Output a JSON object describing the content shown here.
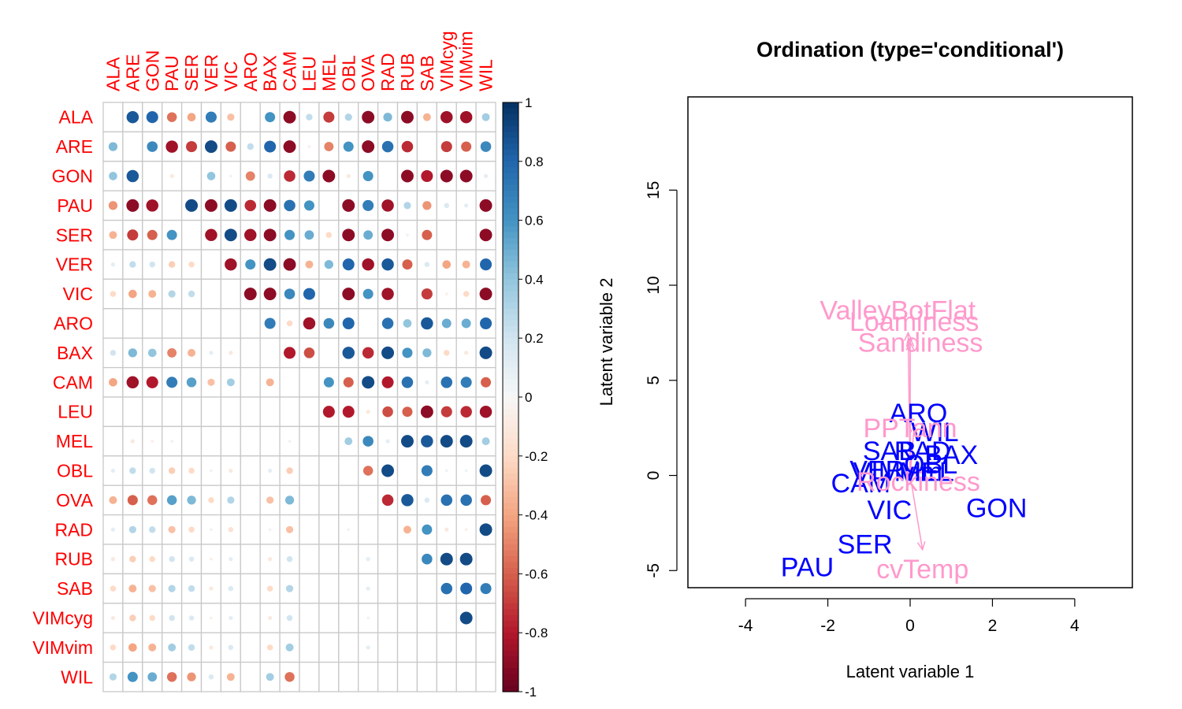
{
  "chart_data": [
    {
      "type": "heatmap",
      "species": [
        "ALA",
        "ARE",
        "GON",
        "PAU",
        "SER",
        "VER",
        "VIC",
        "ARO",
        "BAX",
        "CAM",
        "LEU",
        "MEL",
        "OBL",
        "OVA",
        "RAD",
        "RUB",
        "SAB",
        "VIMcyg",
        "VIMvim",
        "WIL"
      ],
      "correlation": [
        [
          0,
          0.85,
          0.8,
          -0.55,
          -0.4,
          0.7,
          -0.3,
          0,
          0.6,
          -0.9,
          0.25,
          -0.7,
          0.3,
          -0.9,
          0.45,
          -0.9,
          -0.35,
          -0.85,
          -0.85,
          0.35
        ],
        [
          0.45,
          0,
          0.65,
          -0.85,
          -0.7,
          0.9,
          -0.6,
          0.25,
          0.8,
          -0.9,
          -0.05,
          -0.5,
          0.6,
          -0.9,
          0.75,
          -0.75,
          0,
          -0.7,
          -0.6,
          0.65
        ],
        [
          0.4,
          0.85,
          0,
          -0.1,
          0,
          0.4,
          0.05,
          -0.5,
          0.15,
          -0.75,
          0.7,
          -0.9,
          -0.1,
          0.6,
          0,
          -0.9,
          -0.8,
          -0.9,
          -0.9,
          0.1
        ],
        [
          -0.45,
          -0.9,
          -0.85,
          0,
          0.9,
          -0.9,
          0.9,
          -0.75,
          -0.9,
          0.75,
          0.6,
          0,
          -0.9,
          0.7,
          -0.85,
          0.3,
          -0.45,
          0.15,
          0.1,
          -0.9
        ],
        [
          -0.35,
          -0.7,
          -0.6,
          0.6,
          0,
          -0.85,
          0.9,
          -0.85,
          -0.9,
          0.6,
          0.5,
          -0.2,
          -0.9,
          0.5,
          -0.9,
          0.05,
          -0.6,
          0,
          0,
          -0.9
        ],
        [
          0.1,
          0.25,
          0.2,
          -0.25,
          -0.2,
          0,
          -0.85,
          0.6,
          0.9,
          -0.9,
          -0.35,
          0.45,
          0.8,
          -0.85,
          0.85,
          -0.6,
          0.15,
          -0.4,
          -0.35,
          0.8
        ],
        [
          -0.2,
          -0.4,
          -0.35,
          0.3,
          0.25,
          0,
          0,
          -0.9,
          -0.9,
          0.65,
          0.8,
          0,
          -0.9,
          0.6,
          -0.85,
          0,
          -0.7,
          -0.05,
          -0.2,
          -0.9
        ],
        [
          0,
          0,
          0,
          0,
          0,
          0,
          0,
          0,
          0.7,
          -0.2,
          -0.85,
          0.65,
          0.8,
          0,
          0.75,
          0.4,
          0.85,
          0.5,
          0.5,
          0.8
        ],
        [
          0.2,
          0.45,
          0.4,
          -0.5,
          -0.35,
          0.1,
          -0.1,
          0,
          0,
          -0.8,
          -0.65,
          0,
          0.85,
          -0.75,
          0.9,
          0.6,
          0.45,
          -0.2,
          -0.1,
          0.9
        ],
        [
          -0.4,
          -0.85,
          -0.8,
          0.7,
          0.55,
          -0.3,
          0.35,
          0,
          -0.35,
          0,
          0,
          0.6,
          -0.6,
          0.9,
          -0.8,
          0.75,
          0.1,
          0.75,
          0.7,
          -0.6
        ],
        [
          0,
          0,
          0,
          0,
          0,
          0,
          0,
          0,
          0,
          0,
          0,
          -0.8,
          -0.8,
          -0.1,
          -0.65,
          -0.6,
          -0.9,
          -0.7,
          -0.75,
          -0.85
        ],
        [
          0,
          -0.1,
          -0.05,
          0.05,
          0,
          0,
          0,
          0,
          0,
          0.05,
          0,
          0,
          0.35,
          0.65,
          0.1,
          0.9,
          0.85,
          0.9,
          0.9,
          0.35
        ],
        [
          0.1,
          0.25,
          0.2,
          -0.25,
          -0.2,
          0.05,
          -0.1,
          0,
          0.1,
          -0.25,
          0,
          0,
          0,
          -0.55,
          0.9,
          0,
          0.7,
          0.05,
          0.05,
          0.9
        ],
        [
          -0.35,
          -0.6,
          -0.55,
          0.55,
          0.45,
          -0.2,
          0.3,
          0,
          -0.3,
          0.45,
          0,
          0,
          0,
          0,
          -0.75,
          0.85,
          0.15,
          0.75,
          0.75,
          -0.6
        ],
        [
          0.1,
          0.3,
          0.25,
          -0.3,
          -0.2,
          0.05,
          -0.15,
          0,
          0.05,
          -0.3,
          0,
          0,
          0.05,
          0,
          0,
          -0.35,
          0.6,
          -0.1,
          -0.05,
          0.9
        ],
        [
          -0.1,
          -0.25,
          -0.2,
          0.2,
          0.15,
          -0.05,
          0.1,
          0,
          -0.1,
          0.2,
          0,
          0,
          0,
          0.1,
          0,
          0,
          0.65,
          0.9,
          0.9,
          0
        ],
        [
          -0.2,
          -0.35,
          -0.3,
          0.3,
          0.25,
          -0.1,
          0.15,
          0,
          -0.2,
          0.3,
          0,
          0,
          0,
          0.1,
          0,
          0,
          0,
          0.75,
          0.8,
          0.7
        ],
        [
          -0.1,
          -0.25,
          -0.2,
          0.2,
          0.15,
          -0.05,
          0.1,
          0,
          -0.1,
          0.2,
          0,
          0,
          0,
          0.05,
          0,
          0,
          0,
          0,
          0.9,
          0
        ],
        [
          -0.2,
          -0.4,
          -0.35,
          0.35,
          0.25,
          -0.1,
          0.15,
          0,
          -0.2,
          0.35,
          0,
          0,
          0,
          0.1,
          0,
          0,
          0,
          0,
          0,
          0
        ],
        [
          0.3,
          0.6,
          0.5,
          -0.55,
          -0.45,
          0.15,
          -0.35,
          0,
          0.35,
          -0.55,
          0,
          0,
          0,
          0,
          0,
          0,
          0,
          0,
          0,
          0
        ]
      ],
      "colorbar": {
        "ticks": [
          "1",
          "0.8",
          "0.6",
          "0.4",
          "0.2",
          "0",
          "-0.2",
          "-0.4",
          "-0.6",
          "-0.8",
          "-1"
        ],
        "range": [
          -1,
          1
        ]
      },
      "colors": {
        "positive": "#053061",
        "zero": "#f7f7f7",
        "negative": "#67001f",
        "labels": "#ff0000",
        "grid": "#c8c8c8"
      }
    },
    {
      "type": "scatter",
      "title": "Ordination (type='conditional')",
      "xlabel": "Latent variable 1",
      "ylabel": "Latent variable 2",
      "xlim": [
        -5.4,
        5.4
      ],
      "ylim": [
        -5.9,
        19.9
      ],
      "xticks": [
        "-4",
        "-2",
        "0",
        "2",
        "4"
      ],
      "yticks": [
        "-5",
        "0",
        "5",
        "10",
        "15"
      ],
      "species_points": [
        {
          "label": "ARO",
          "x": 0.2,
          "y": 3.3
        },
        {
          "label": "WIL",
          "x": 0.6,
          "y": 2.3
        },
        {
          "label": "SAB",
          "x": -0.5,
          "y": 1.3
        },
        {
          "label": "BAX",
          "x": 1.0,
          "y": 1.1
        },
        {
          "label": "RAD",
          "x": 0.3,
          "y": 1.3
        },
        {
          "label": "OBL",
          "x": 0.5,
          "y": 0.6
        },
        {
          "label": "VER",
          "x": -0.8,
          "y": 0.3
        },
        {
          "label": "VIMvim",
          "x": -0.3,
          "y": 0.2
        },
        {
          "label": "MEL",
          "x": 0.4,
          "y": 0.2
        },
        {
          "label": "CAM",
          "x": -1.2,
          "y": -0.4
        },
        {
          "label": "VIC",
          "x": -0.5,
          "y": -1.8
        },
        {
          "label": "GON",
          "x": 2.1,
          "y": -1.7
        },
        {
          "label": "SER",
          "x": -1.1,
          "y": -3.6
        },
        {
          "label": "PAU",
          "x": -2.5,
          "y": -4.8
        }
      ],
      "env_arrows": [
        {
          "label": "ValleyBotFlat",
          "x": -0.3,
          "y": 8.7,
          "arrow_to": [
            -0.05,
            7.5
          ]
        },
        {
          "label": "Loaminess",
          "x": 0.1,
          "y": 8.1,
          "arrow_to": [
            0.0,
            7.2
          ]
        },
        {
          "label": "Sandiness",
          "x": 0.25,
          "y": 7.0,
          "arrow_to": [
            0.0,
            7.0
          ]
        },
        {
          "label": "PPTann",
          "x": 0.0,
          "y": 2.5,
          "arrow_to": [
            0.1,
            2.6
          ]
        },
        {
          "label": "Rockiness",
          "x": 0.2,
          "y": -0.3,
          "arrow_to": [
            0.1,
            0.05
          ]
        },
        {
          "label": "cvTemp",
          "x": 0.3,
          "y": -4.9,
          "arrow_to": [
            0.3,
            -3.9
          ]
        }
      ],
      "colors": {
        "species": "#0000ff",
        "env": "#ff99cc"
      }
    }
  ]
}
